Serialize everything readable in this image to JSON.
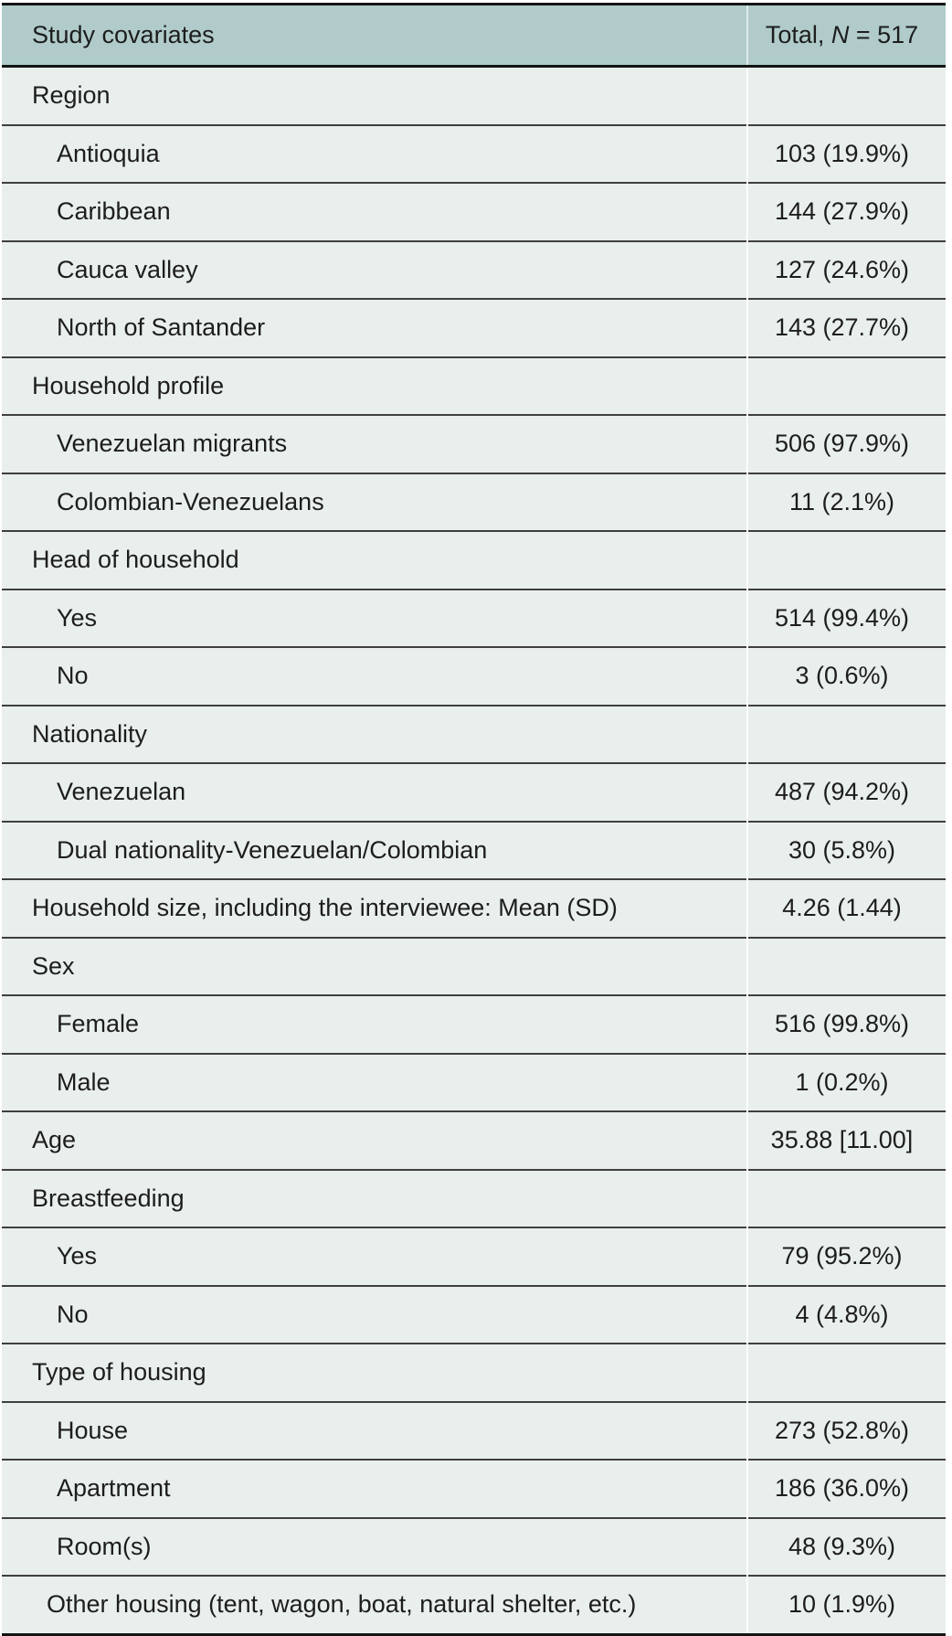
{
  "colors": {
    "header_bg": "#b0cbca",
    "body_bg": "#e9efed",
    "row_line": "#3f3f3f",
    "frame": "#141414",
    "text": "#1d1d1d",
    "col_divider": "rgba(255,255,255,0.6)"
  },
  "table": {
    "header": {
      "col1": "Study covariates",
      "total_prefix": "Total, ",
      "total_n": "N",
      "total_suffix": " = 517"
    },
    "rows": [
      {
        "label": "Region",
        "value": "",
        "indent": "cat"
      },
      {
        "label": "Antioquia",
        "value": "103 (19.9%)",
        "indent": "sub"
      },
      {
        "label": "Caribbean",
        "value": "144 (27.9%)",
        "indent": "sub"
      },
      {
        "label": "Cauca valley",
        "value": "127 (24.6%)",
        "indent": "sub"
      },
      {
        "label": "North of Santander",
        "value": "143 (27.7%)",
        "indent": "sub"
      },
      {
        "label": "Household profile",
        "value": "",
        "indent": "cat"
      },
      {
        "label": "Venezuelan migrants",
        "value": "506 (97.9%)",
        "indent": "sub"
      },
      {
        "label": "Colombian-Venezuelans",
        "value": "11 (2.1%)",
        "indent": "sub"
      },
      {
        "label": "Head of household",
        "value": "",
        "indent": "cat"
      },
      {
        "label": "Yes",
        "value": "514 (99.4%)",
        "indent": "sub"
      },
      {
        "label": "No",
        "value": "3 (0.6%)",
        "indent": "sub"
      },
      {
        "label": "Nationality",
        "value": "",
        "indent": "cat"
      },
      {
        "label": "Venezuelan",
        "value": "487 (94.2%)",
        "indent": "sub"
      },
      {
        "label": "Dual nationality-Venezuelan/Colombian",
        "value": "30 (5.8%)",
        "indent": "sub"
      },
      {
        "label": "Household size, including the interviewee: Mean (SD)",
        "value": "4.26 (1.44)",
        "indent": "cat"
      },
      {
        "label": "Sex",
        "value": "",
        "indent": "cat"
      },
      {
        "label": "Female",
        "value": "516 (99.8%)",
        "indent": "sub"
      },
      {
        "label": "Male",
        "value": "1 (0.2%)",
        "indent": "sub"
      },
      {
        "label": "Age",
        "value": "35.88 [11.00]",
        "indent": "cat"
      },
      {
        "label": "Breastfeeding",
        "value": "",
        "indent": "cat"
      },
      {
        "label": "Yes",
        "value": "79 (95.2%)",
        "indent": "sub"
      },
      {
        "label": "No",
        "value": "4 (4.8%)",
        "indent": "sub"
      },
      {
        "label": "Type of housing",
        "value": "",
        "indent": "cat"
      },
      {
        "label": "House",
        "value": "273 (52.8%)",
        "indent": "sub"
      },
      {
        "label": "Apartment",
        "value": "186 (36.0%)",
        "indent": "sub"
      },
      {
        "label": "Room(s)",
        "value": "48 (9.3%)",
        "indent": "sub"
      },
      {
        "label": "Other housing (tent, wagon, boat, natural shelter, etc.)",
        "value": "10 (1.9%)",
        "indent": "sub-tight"
      }
    ]
  }
}
